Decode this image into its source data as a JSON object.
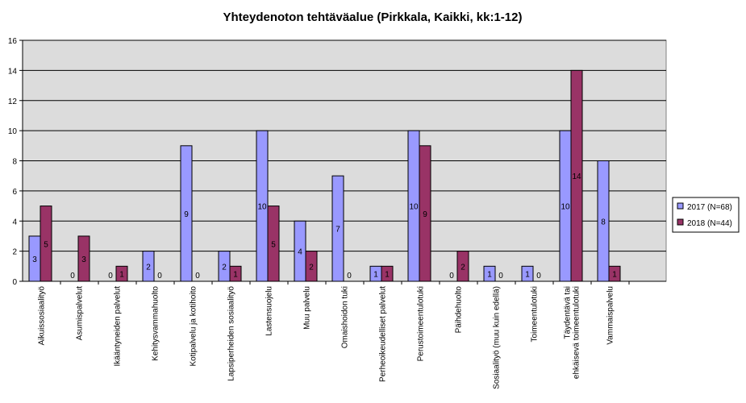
{
  "chart_data": {
    "type": "bar",
    "title": "Yhteydenoton tehtäväalue (Pirkkala, Kaikki, kk:1-12)",
    "xlabel": "",
    "ylabel": "",
    "ylim": [
      0,
      16
    ],
    "yticks": [
      0,
      2,
      4,
      6,
      8,
      10,
      12,
      14,
      16
    ],
    "grid": true,
    "legend_position": "right",
    "categories": [
      "Aikuissosiaalityö",
      "Asumispalvelut",
      "Ikääntyneiden palvelut",
      "Kehitysvammahuolto",
      "Kotipalvelu ja kotihoito",
      "Lapsiperheiden sosiaalityö",
      "Lastensuojelu",
      "Muu palvelu",
      "Omaishoidon tuki",
      "Perheoikeudelliset palvelut",
      "Perustoimeentulotuki",
      "Päihdehuolto",
      "Sosiaalityö (muu kuin edellä)",
      "Toimeentulotuki",
      "Täydentävä tai ehkäisevä toimeentulotuki",
      "Vammaispalvelu"
    ],
    "series": [
      {
        "name": "2017 (N=68)",
        "color": "#9999ff",
        "values": [
          3,
          0,
          0,
          2,
          9,
          2,
          10,
          4,
          7,
          1,
          10,
          0,
          1,
          1,
          10,
          8
        ]
      },
      {
        "name": "2018 (N=44)",
        "color": "#993366",
        "values": [
          5,
          3,
          1,
          0,
          0,
          1,
          5,
          2,
          0,
          1,
          9,
          2,
          0,
          0,
          14,
          1
        ]
      }
    ],
    "colors": {
      "plot_background": "#dcdcdc"
    }
  }
}
